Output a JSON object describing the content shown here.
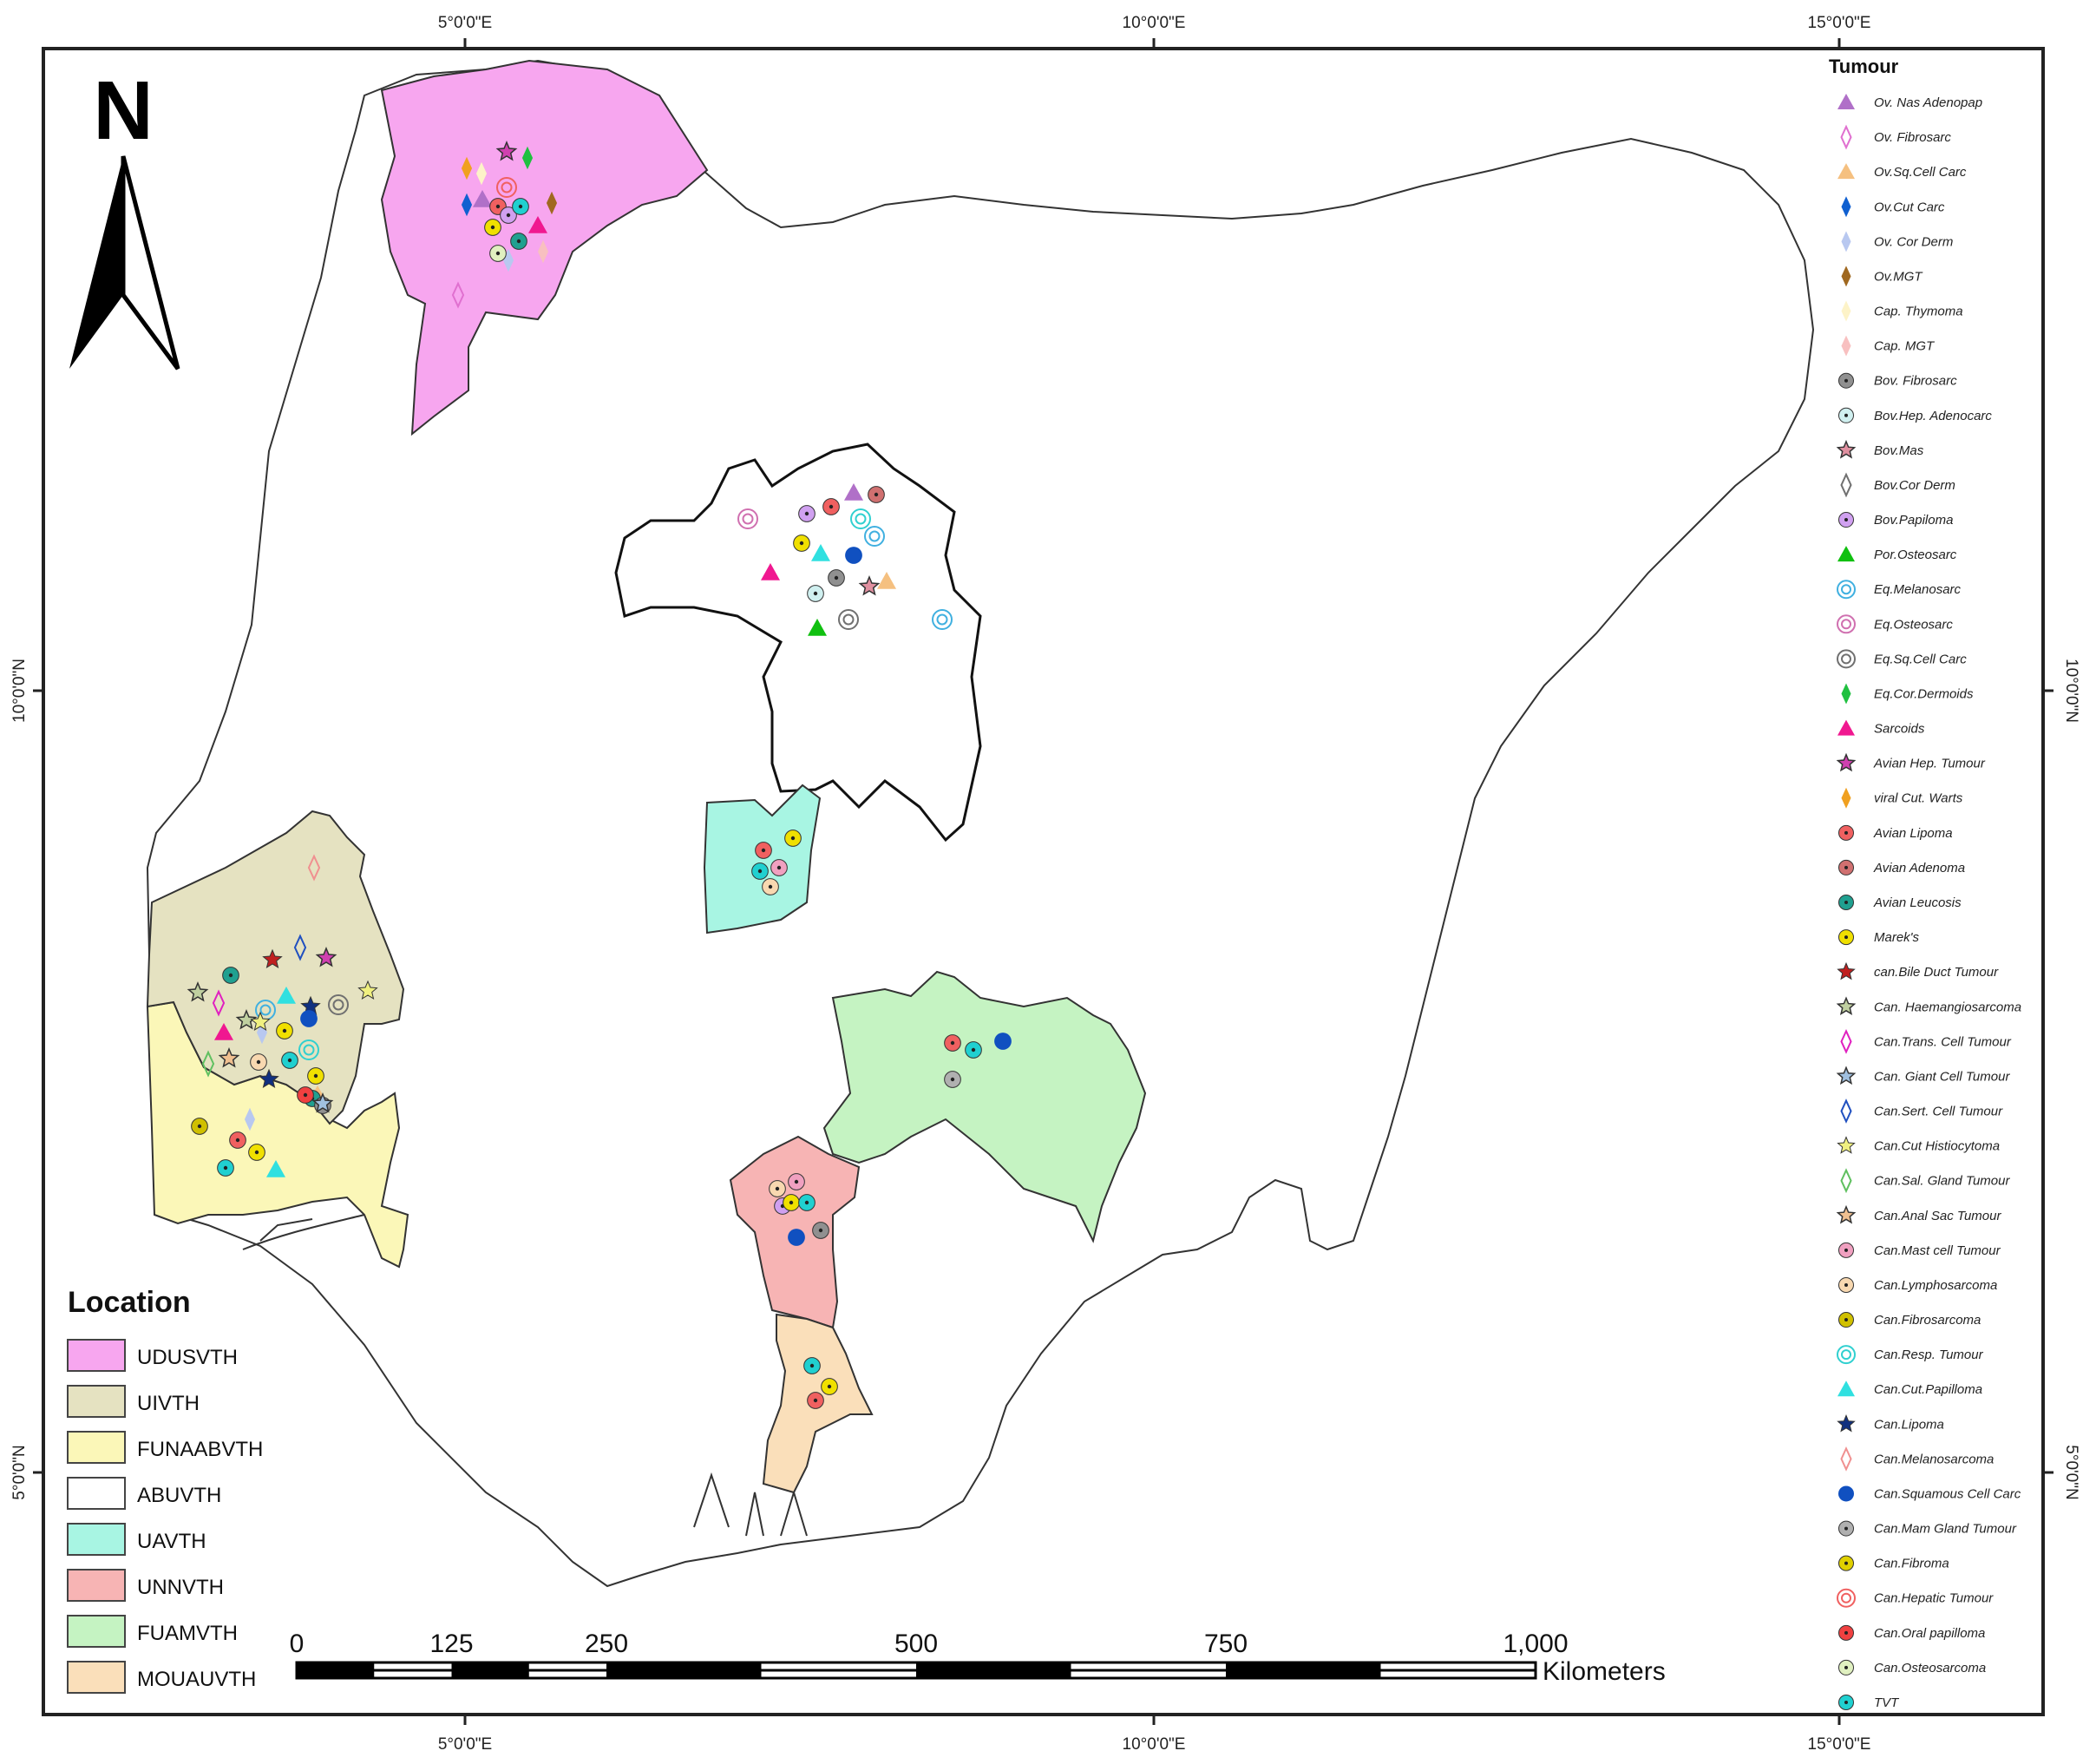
{
  "north_label": "N",
  "graticule": {
    "top": [
      "5°0'0\"E",
      "10°0'0\"E",
      "15°0'0\"E"
    ],
    "bottom": [
      "5°0'0\"E",
      "10°0'0\"E",
      "15°0'0\"E"
    ],
    "left": [
      "10°0'0\"N",
      "5°0'0\"N"
    ],
    "right": [
      "10°0'0\"N",
      "5°0'0\"N"
    ]
  },
  "tumour_legend": {
    "title": "Tumour",
    "items": [
      {
        "label": "Ov. Nas Adenopap",
        "shape": "triangle",
        "color": "#b070c8"
      },
      {
        "label": "Ov. Fibrosarc",
        "shape": "diamond-outline",
        "color": "#e070d0"
      },
      {
        "label": "Ov.Sq.Cell Carc",
        "shape": "triangle",
        "color": "#f5c080"
      },
      {
        "label": "Ov.Cut Carc",
        "shape": "diamond",
        "color": "#1060d0"
      },
      {
        "label": "Ov. Cor Derm",
        "shape": "diamond",
        "color": "#b8c8f0"
      },
      {
        "label": "Ov.MGT",
        "shape": "diamond",
        "color": "#a06820"
      },
      {
        "label": "Cap. Thymoma",
        "shape": "diamond",
        "color": "#fdf3c8"
      },
      {
        "label": "Cap. MGT",
        "shape": "diamond",
        "color": "#f8c0c0"
      },
      {
        "label": "Bov. Fibrosarc",
        "shape": "dot-circle",
        "color": "#909090"
      },
      {
        "label": "Bov.Hep. Adenocarc",
        "shape": "dot-circle",
        "color": "#d0f0f0"
      },
      {
        "label": "Bov.Mas",
        "shape": "star-outline",
        "color": "#e090a0"
      },
      {
        "label": "Bov.Cor Derm",
        "shape": "diamond-outline",
        "color": "#707070"
      },
      {
        "label": "Bov.Papiloma",
        "shape": "dot-circle",
        "color": "#d0a0f0"
      },
      {
        "label": "Por.Osteosarc",
        "shape": "triangle",
        "color": "#10c010"
      },
      {
        "label": "Eq.Melanosarc",
        "shape": "ring",
        "color": "#40b0e0"
      },
      {
        "label": "Eq.Osteosarc",
        "shape": "ring",
        "color": "#d070b0"
      },
      {
        "label": "Eq.Sq.Cell Carc",
        "shape": "ring",
        "color": "#707070"
      },
      {
        "label": "Eq.Cor.Dermoids",
        "shape": "diamond",
        "color": "#20c040"
      },
      {
        "label": "Sarcoids",
        "shape": "triangle",
        "color": "#f01890"
      },
      {
        "label": "Avian Hep. Tumour",
        "shape": "star-outline",
        "color": "#d040b0"
      },
      {
        "label": "viral Cut. Warts",
        "shape": "diamond",
        "color": "#f0a020"
      },
      {
        "label": "Avian Lipoma",
        "shape": "dot-circle",
        "color": "#f06060"
      },
      {
        "label": "Avian Adenoma",
        "shape": "dot-circle",
        "color": "#d07070"
      },
      {
        "label": "Avian Leucosis",
        "shape": "dot-circle",
        "color": "#20a090"
      },
      {
        "label": "Marek's",
        "shape": "dot-circle",
        "color": "#f0e000"
      },
      {
        "label": "can.Bile Duct Tumour",
        "shape": "star",
        "color": "#c02020"
      },
      {
        "label": "Can. Haemangiosarcoma",
        "shape": "star-outline",
        "color": "#c0d0a0"
      },
      {
        "label": "Can.Trans. Cell Tumour",
        "shape": "diamond-outline",
        "color": "#e020c0"
      },
      {
        "label": "Can. Giant Cell Tumour",
        "shape": "star-outline",
        "color": "#a0c0e0"
      },
      {
        "label": "Can.Sert. Cell Tumour",
        "shape": "diamond-outline",
        "color": "#2050c0"
      },
      {
        "label": "Can.Cut Histiocytoma",
        "shape": "star",
        "color": "#f0f080"
      },
      {
        "label": "Can.Sal. Gland Tumour",
        "shape": "diamond-outline",
        "color": "#60c060"
      },
      {
        "label": "Can.Anal Sac Tumour",
        "shape": "star-outline",
        "color": "#f0c090"
      },
      {
        "label": "Can.Mast cell Tumour",
        "shape": "dot-circle",
        "color": "#f0a0c0"
      },
      {
        "label": "Can.Lymphosarcoma",
        "shape": "dot-circle",
        "color": "#f8d8b0"
      },
      {
        "label": "Can.Fibrosarcoma",
        "shape": "dot-circle",
        "color": "#d0c000"
      },
      {
        "label": "Can.Resp. Tumour",
        "shape": "ring",
        "color": "#30d0d0"
      },
      {
        "label": "Can.Cut.Papilloma",
        "shape": "triangle",
        "color": "#30e0e0"
      },
      {
        "label": "Can.Lipoma",
        "shape": "star",
        "color": "#103080"
      },
      {
        "label": "Can.Melanosarcoma",
        "shape": "diamond-outline",
        "color": "#f09090"
      },
      {
        "label": "Can.Squamous Cell Carc",
        "shape": "circle",
        "color": "#1050c0"
      },
      {
        "label": "Can.Mam Gland Tumour",
        "shape": "dot-circle",
        "color": "#b0b0b0"
      },
      {
        "label": "Can.Fibroma",
        "shape": "dot-circle",
        "color": "#e0d000"
      },
      {
        "label": "Can.Hepatic Tumour",
        "shape": "ring",
        "color": "#f06060"
      },
      {
        "label": "Can.Oral papilloma",
        "shape": "dot-circle",
        "color": "#f04040"
      },
      {
        "label": "Can.Osteosarcoma",
        "shape": "dot-circle",
        "color": "#e0f0c0"
      },
      {
        "label": "TVT",
        "shape": "dot-circle",
        "color": "#20d0d0"
      }
    ]
  },
  "location_legend": {
    "title": "Location",
    "items": [
      {
        "label": "UDUSVTH",
        "color": "#f7a6ef"
      },
      {
        "label": "UIVTH",
        "color": "#e5e2c1"
      },
      {
        "label": "FUNAABVTH",
        "color": "#fbf7b8"
      },
      {
        "label": "ABUVTH",
        "color": "#ffffff"
      },
      {
        "label": "UAVTH",
        "color": "#a8f5e3"
      },
      {
        "label": "UNNVTH",
        "color": "#f7b4b4"
      },
      {
        "label": "FUAMVTH",
        "color": "#c5f3c2"
      },
      {
        "label": "MOUAUVTH",
        "color": "#fadfba"
      }
    ]
  },
  "scale_bar": {
    "ticks": [
      0,
      125,
      250,
      500,
      750,
      1000
    ],
    "tick_labels": [
      "0",
      "125",
      "250",
      "500",
      "750",
      "1,000"
    ],
    "unit": "Kilometers"
  }
}
